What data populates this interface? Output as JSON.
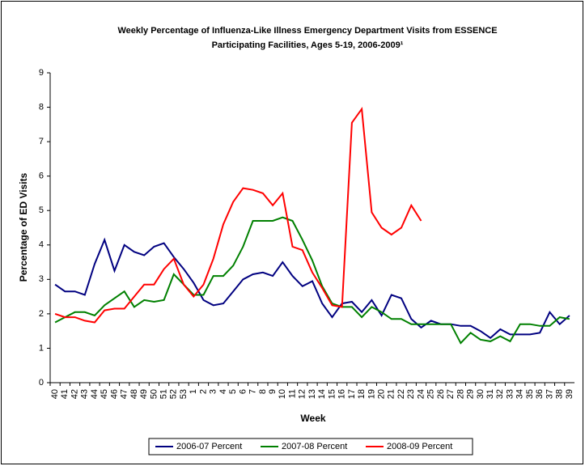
{
  "chart_data": {
    "type": "line",
    "title": [
      "Weekly Percentage of Influenza-Like Illness Emergency Department Visits from ESSENCE",
      "Participating Facilities, Ages 5-19, 2006-2009¹"
    ],
    "x_label": "Week",
    "y_label": "Percentage of ED Visits",
    "categories": [
      "40",
      "41",
      "42",
      "43",
      "44",
      "45",
      "46",
      "47",
      "48",
      "49",
      "50",
      "51",
      "52",
      "53",
      "1",
      "2",
      "3",
      "4",
      "5",
      "6",
      "7",
      "8",
      "9",
      "10",
      "11",
      "12",
      "13",
      "14",
      "15",
      "16",
      "17",
      "18",
      "19",
      "20",
      "21",
      "22",
      "23",
      "24",
      "25",
      "26",
      "27",
      "28",
      "29",
      "30",
      "31",
      "32",
      "33",
      "34",
      "35",
      "36",
      "37",
      "38",
      "39"
    ],
    "series": [
      {
        "name": "2006-07 Percent",
        "color": "#000080",
        "values": [
          2.85,
          2.65,
          2.65,
          2.55,
          3.45,
          4.15,
          3.25,
          4.0,
          3.8,
          3.7,
          3.95,
          4.05,
          3.65,
          3.3,
          2.9,
          2.4,
          2.25,
          2.3,
          2.65,
          3.0,
          3.15,
          3.2,
          3.1,
          3.5,
          3.1,
          2.8,
          2.95,
          2.3,
          1.9,
          2.3,
          2.35,
          2.05,
          2.4,
          1.95,
          2.55,
          2.45,
          1.85,
          1.6,
          1.8,
          1.7,
          1.7,
          1.65,
          1.65,
          1.5,
          1.3,
          1.55,
          1.4,
          1.4,
          1.4,
          1.45,
          2.05,
          1.7,
          1.95
        ]
      },
      {
        "name": "2007-08 Percent",
        "color": "#008000",
        "values": [
          1.75,
          1.9,
          2.05,
          2.05,
          1.95,
          2.25,
          2.45,
          2.65,
          2.2,
          2.4,
          2.35,
          2.4,
          3.15,
          2.85,
          2.55,
          2.55,
          3.1,
          3.1,
          3.4,
          3.95,
          4.7,
          4.7,
          4.7,
          4.8,
          4.7,
          4.15,
          3.55,
          2.8,
          2.3,
          2.2,
          2.2,
          1.9,
          2.2,
          2.05,
          1.85,
          1.85,
          1.7,
          1.7,
          1.7,
          1.7,
          1.7,
          1.15,
          1.45,
          1.25,
          1.2,
          1.35,
          1.2,
          1.7,
          1.7,
          1.65,
          1.65,
          1.9,
          1.85
        ]
      },
      {
        "name": "2008-09 Percent",
        "color": "#ff0000",
        "values": [
          2.0,
          1.9,
          1.9,
          1.8,
          1.75,
          2.1,
          2.15,
          2.15,
          2.5,
          2.85,
          2.85,
          3.3,
          3.6,
          2.85,
          2.5,
          2.85,
          3.6,
          4.6,
          5.25,
          5.65,
          5.6,
          5.5,
          5.15,
          5.5,
          3.95,
          3.85,
          3.2,
          2.75,
          2.25,
          2.2,
          7.55,
          7.95,
          4.95,
          4.5,
          4.3,
          4.5,
          5.15,
          4.7,
          null,
          null,
          null,
          null,
          null,
          null,
          null,
          null,
          null,
          null,
          null,
          null,
          null,
          null,
          null
        ]
      }
    ],
    "ylim": [
      0,
      9
    ],
    "yticks": [
      0,
      1,
      2,
      3,
      4,
      5,
      6,
      7,
      8,
      9
    ],
    "legend": "bottom"
  }
}
